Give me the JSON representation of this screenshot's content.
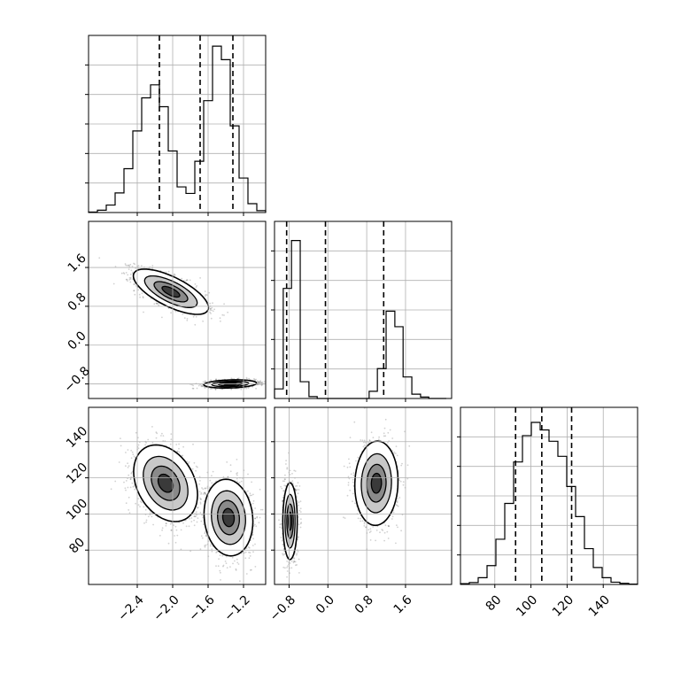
{
  "chart_data": {
    "type": "corner",
    "grid": true,
    "variables": [
      {
        "range": [
          -2.95,
          -0.95
        ],
        "ticks": [
          -2.4,
          -2.0,
          -1.6,
          -1.2
        ],
        "tick_labels": [
          "−2.4",
          "−2.0",
          "−1.6",
          "−1.2"
        ]
      },
      {
        "range": [
          -1.1,
          2.55
        ],
        "ticks": [
          -0.8,
          0.0,
          0.8,
          1.6
        ],
        "tick_labels": [
          "−0.8",
          "0.0",
          "0.8",
          "1.6"
        ]
      },
      {
        "range": [
          61,
          159
        ],
        "ticks": [
          80,
          100,
          120,
          140
        ],
        "tick_labels": [
          "80",
          "100",
          "120",
          "140"
        ]
      }
    ],
    "histograms": [
      {
        "var": 0,
        "bins": [
          -2.95,
          -2.85,
          -2.75,
          -2.65,
          -2.55,
          -2.45,
          -2.35,
          -2.25,
          -2.15,
          -2.05,
          -1.95,
          -1.85,
          -1.75,
          -1.65,
          -1.55,
          -1.45,
          -1.35,
          -1.25,
          -1.15,
          -1.05,
          -0.95
        ],
        "counts": [
          1,
          5,
          16,
          42,
          94,
          175,
          246,
          274,
          227,
          132,
          55,
          41,
          110,
          240,
          357,
          328,
          186,
          74,
          19,
          4
        ],
        "ymax": 380,
        "quantiles": [
          -2.15,
          -1.69,
          -1.32
        ]
      },
      {
        "var": 1,
        "bins": [
          -1.1,
          -0.92,
          -0.75,
          -0.57,
          -0.39,
          -0.22,
          -0.04,
          0.14,
          0.31,
          0.49,
          0.67,
          0.85,
          1.02,
          1.2,
          1.38,
          1.55,
          1.73,
          1.91,
          2.08,
          2.26,
          2.44
        ],
        "counts": [
          40,
          460,
          660,
          70,
          8,
          0,
          0,
          0,
          0,
          0,
          0,
          30,
          125,
          365,
          300,
          90,
          18,
          6,
          0,
          0
        ],
        "ymax": 740,
        "quantiles": [
          -0.85,
          -0.05,
          1.15
        ]
      },
      {
        "var": 2,
        "bins": [
          61,
          65.9,
          70.8,
          75.7,
          80.6,
          85.5,
          90.4,
          95.3,
          100.2,
          105.1,
          110,
          114.9,
          119.8,
          124.7,
          129.6,
          134.5,
          139.4,
          144.3,
          149.2,
          154.1,
          159
        ],
        "counts": [
          2,
          5,
          18,
          50,
          120,
          215,
          325,
          395,
          430,
          410,
          380,
          340,
          260,
          180,
          95,
          45,
          18,
          6,
          3,
          1
        ],
        "ymax": 470,
        "quantiles": [
          91.5,
          106.0,
          122.5
        ]
      }
    ],
    "joint_panels": [
      {
        "x_var": 0,
        "y_var": 1,
        "modes": [
          {
            "mx": -2.02,
            "my": 1.1,
            "sx": 0.2,
            "sy": 0.22,
            "rho": -0.7
          },
          {
            "mx": -1.35,
            "my": -0.8,
            "sx": 0.14,
            "sy": 0.04,
            "rho": 0.2
          }
        ]
      },
      {
        "x_var": 0,
        "y_var": 2,
        "modes": [
          {
            "mx": -2.08,
            "my": 117,
            "sx": 0.17,
            "sy": 10,
            "rho": -0.3
          },
          {
            "mx": -1.37,
            "my": 98,
            "sx": 0.13,
            "sy": 10,
            "rho": -0.1
          }
        ]
      },
      {
        "x_var": 1,
        "y_var": 2,
        "modes": [
          {
            "mx": -0.78,
            "my": 96,
            "sx": 0.07,
            "sy": 10,
            "rho": 0.0
          },
          {
            "mx": 1.0,
            "my": 117,
            "sx": 0.21,
            "sy": 11,
            "rho": 0.05
          }
        ]
      }
    ]
  }
}
